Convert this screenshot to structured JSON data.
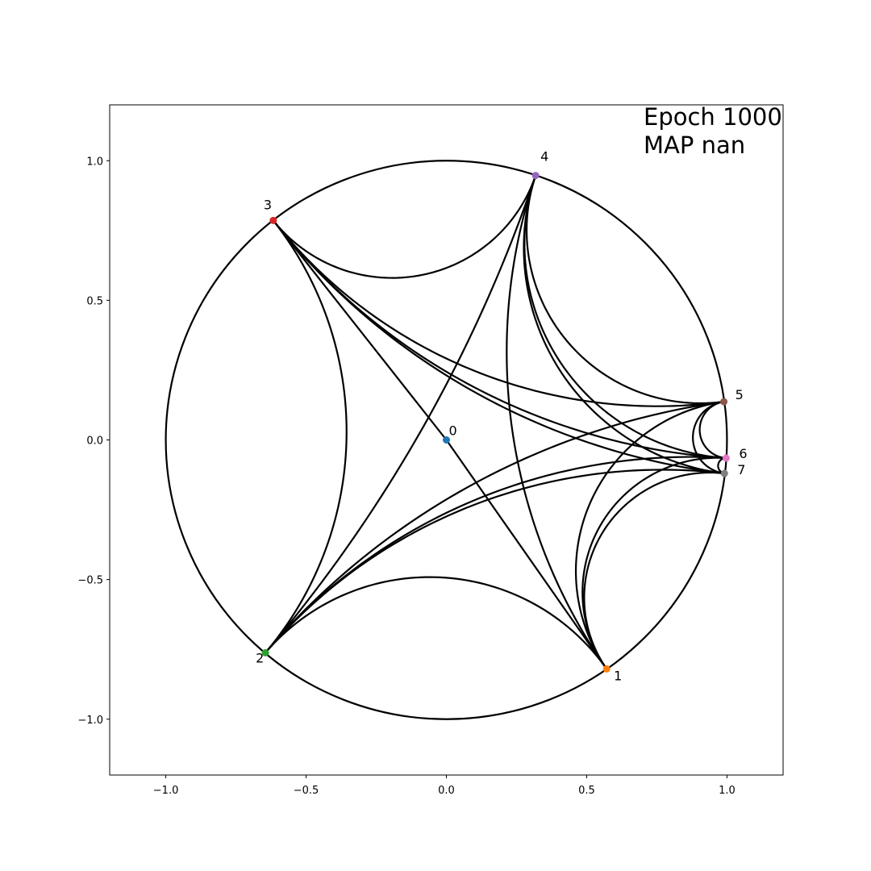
{
  "chart_data": {
    "type": "scatter",
    "annotations": [
      "Epoch 1000",
      "MAP nan"
    ],
    "labels": [
      "0",
      "1",
      "2",
      "3",
      "4",
      "5",
      "6",
      "7"
    ],
    "x": [
      0,
      0.571,
      -0.645,
      -0.617,
      0.318,
      0.989,
      0.997,
      0.991
    ],
    "values": [
      0,
      -0.82,
      -0.762,
      0.786,
      0.947,
      0.137,
      -0.065,
      -0.12
    ],
    "colors": [
      "#1f77b4",
      "#ff7f0e",
      "#2ca02c",
      "#d62728",
      "#9467bd",
      "#8c564b",
      "#e377c2",
      "#7f7f7f"
    ],
    "edges": [
      [
        0,
        1
      ],
      [
        0,
        3
      ],
      [
        3,
        4
      ],
      [
        3,
        2
      ],
      [
        2,
        1
      ],
      [
        2,
        4
      ],
      [
        4,
        1
      ],
      [
        4,
        5
      ],
      [
        4,
        6
      ],
      [
        4,
        7
      ],
      [
        3,
        5
      ],
      [
        3,
        6
      ],
      [
        3,
        7
      ],
      [
        2,
        5
      ],
      [
        2,
        6
      ],
      [
        2,
        7
      ],
      [
        1,
        5
      ],
      [
        1,
        6
      ],
      [
        1,
        7
      ],
      [
        5,
        6
      ],
      [
        5,
        7
      ],
      [
        6,
        7
      ]
    ],
    "edge_color": "#000000",
    "xlim": [
      -1.2,
      1.2
    ],
    "ylim": [
      -1.2,
      1.2
    ],
    "xticks": [
      {
        "value": -1,
        "label": "−1.0"
      },
      {
        "value": -0.5,
        "label": "−0.5"
      },
      {
        "value": 0,
        "label": "0.0"
      },
      {
        "value": 0.5,
        "label": "0.5"
      },
      {
        "value": 1,
        "label": "1.0"
      }
    ],
    "yticks": [
      {
        "value": -1,
        "label": "−1.0"
      },
      {
        "value": -0.5,
        "label": "−0.5"
      },
      {
        "value": 0,
        "label": "0.0"
      },
      {
        "value": 0.5,
        "label": "0.5"
      },
      {
        "value": 1,
        "label": "1.0"
      }
    ]
  }
}
